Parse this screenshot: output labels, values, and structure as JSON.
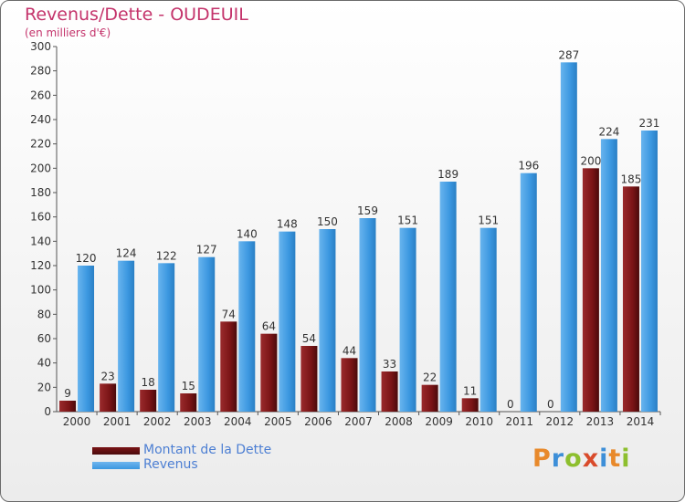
{
  "colors": {
    "debt": "#7a1416",
    "revenue": "#3b97e0",
    "title": "#c4336b",
    "legend_text": "#4d7fd3"
  },
  "chart_data": {
    "type": "bar",
    "title": "Revenus/Dette - OUDEUIL",
    "subtitle": "(en milliers d'€)",
    "categories": [
      "2000",
      "2001",
      "2002",
      "2003",
      "2004",
      "2005",
      "2006",
      "2007",
      "2008",
      "2009",
      "2010",
      "2011",
      "2012",
      "2013",
      "2014"
    ],
    "series": [
      {
        "name": "Montant de la Dette",
        "values": [
          9,
          23,
          18,
          15,
          74,
          64,
          54,
          44,
          33,
          22,
          11,
          0,
          0,
          200,
          185
        ]
      },
      {
        "name": "Revenus",
        "values": [
          120,
          124,
          122,
          127,
          140,
          148,
          150,
          159,
          151,
          189,
          151,
          196,
          287,
          224,
          231
        ]
      }
    ],
    "ylim": [
      0,
      300
    ],
    "yticks": [
      0,
      20,
      40,
      60,
      80,
      100,
      120,
      140,
      160,
      180,
      200,
      220,
      240,
      260,
      280,
      300
    ],
    "grid": false,
    "legend_position": "bottom-left"
  },
  "legend": [
    {
      "label": "Montant de la Dette"
    },
    {
      "label": "Revenus"
    }
  ],
  "logo": {
    "letters": [
      "P",
      "r",
      "o",
      "x",
      "i",
      "t",
      "i"
    ]
  }
}
